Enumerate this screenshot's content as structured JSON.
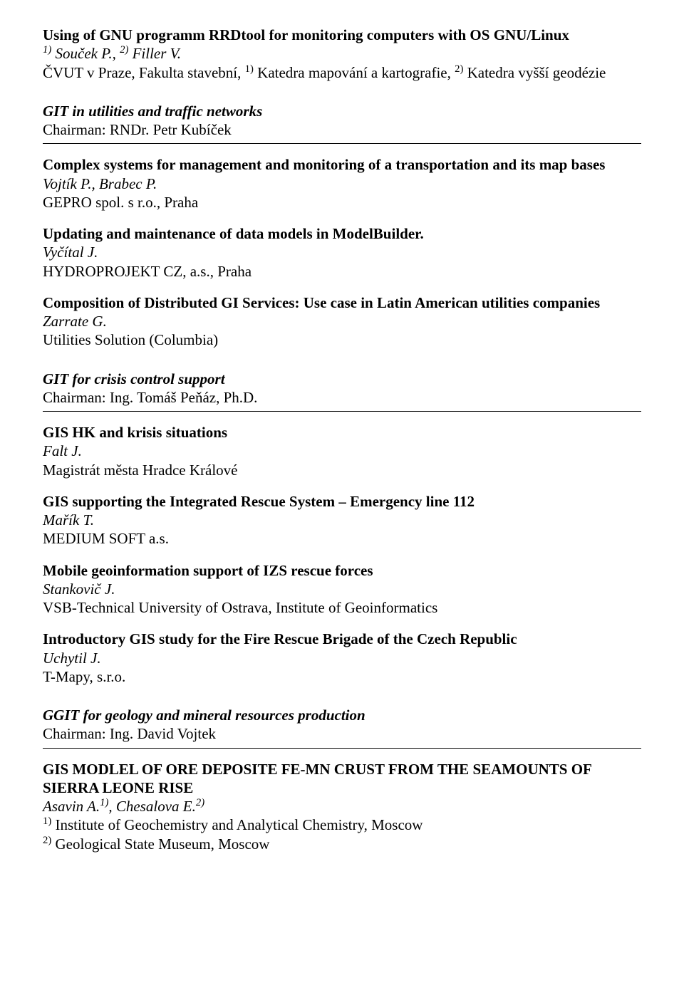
{
  "entries_top": [
    {
      "title": "Using of GNU programm RRDtool for monitoring computers with OS GNU/Linux",
      "authors_html": "<sup>1)</sup> Souček P., <sup>2)</sup> Filler V.",
      "affil_html": "ČVUT v Praze, Fakulta stavební, <sup>1)</sup> Katedra mapování a kartografie, <sup>2)</sup> Katedra vyšší geodézie"
    }
  ],
  "sections": [
    {
      "title": "GIT in utilities and traffic networks",
      "chair": "Chairman: RNDr. Petr Kubíček",
      "entries": [
        {
          "title": "Complex systems for management and monitoring of a transportation and its map bases",
          "authors_html": "Vojtík P., Brabec P.",
          "affil_html": "GEPRO spol. s r.o., Praha"
        },
        {
          "title": "Updating and maintenance of data models in ModelBuilder.",
          "authors_html": "Vyčítal J.",
          "affil_html": "HYDROPROJEKT CZ, a.s., Praha"
        },
        {
          "title": "Composition of Distributed GI Services: Use case in Latin American utilities companies",
          "authors_html": "Zarrate G.",
          "affil_html": "Utilities Solution (Columbia)"
        }
      ]
    },
    {
      "title": "GIT for crisis control support",
      "chair": "Chairman: Ing. Tomáš Peňáz, Ph.D.",
      "entries": [
        {
          "title": "GIS HK and krisis situations",
          "authors_html": "Falt J.",
          "affil_html": "Magistrát města Hradce Králové"
        },
        {
          "title": "GIS supporting the Integrated Rescue System – Emergency line 112",
          "authors_html": "Mařík T.",
          "affil_html": "MEDIUM SOFT a.s."
        },
        {
          "title": "Mobile geoinformation support of IZS rescue forces",
          "authors_html": "Stankovič J.",
          "affil_html": "VSB-Technical University of Ostrava, Institute of Geoinformatics"
        },
        {
          "title": "Introductory GIS study for the Fire Rescue Brigade of the Czech Republic",
          "authors_html": "Uchytil J.",
          "affil_html": "T-Mapy, s.r.o."
        }
      ]
    },
    {
      "title": "GGIT for geology and mineral resources production",
      "chair": "Chairman: Ing. David Vojtek",
      "entries": [
        {
          "title": "GIS MODLEL OF ORE DEPOSITE FE-MN CRUST FROM THE SEAMOUNTS OF SIERRA LEONE RISE",
          "authors_html": "Asavin A.<sup>1)</sup>, Chesalova E.<sup>2)</sup>",
          "affil_html": "<sup>1)</sup> Institute of Geochemistry and Analytical Chemistry, Moscow<br><sup>2)</sup> Geological State Museum, Moscow"
        }
      ]
    }
  ]
}
